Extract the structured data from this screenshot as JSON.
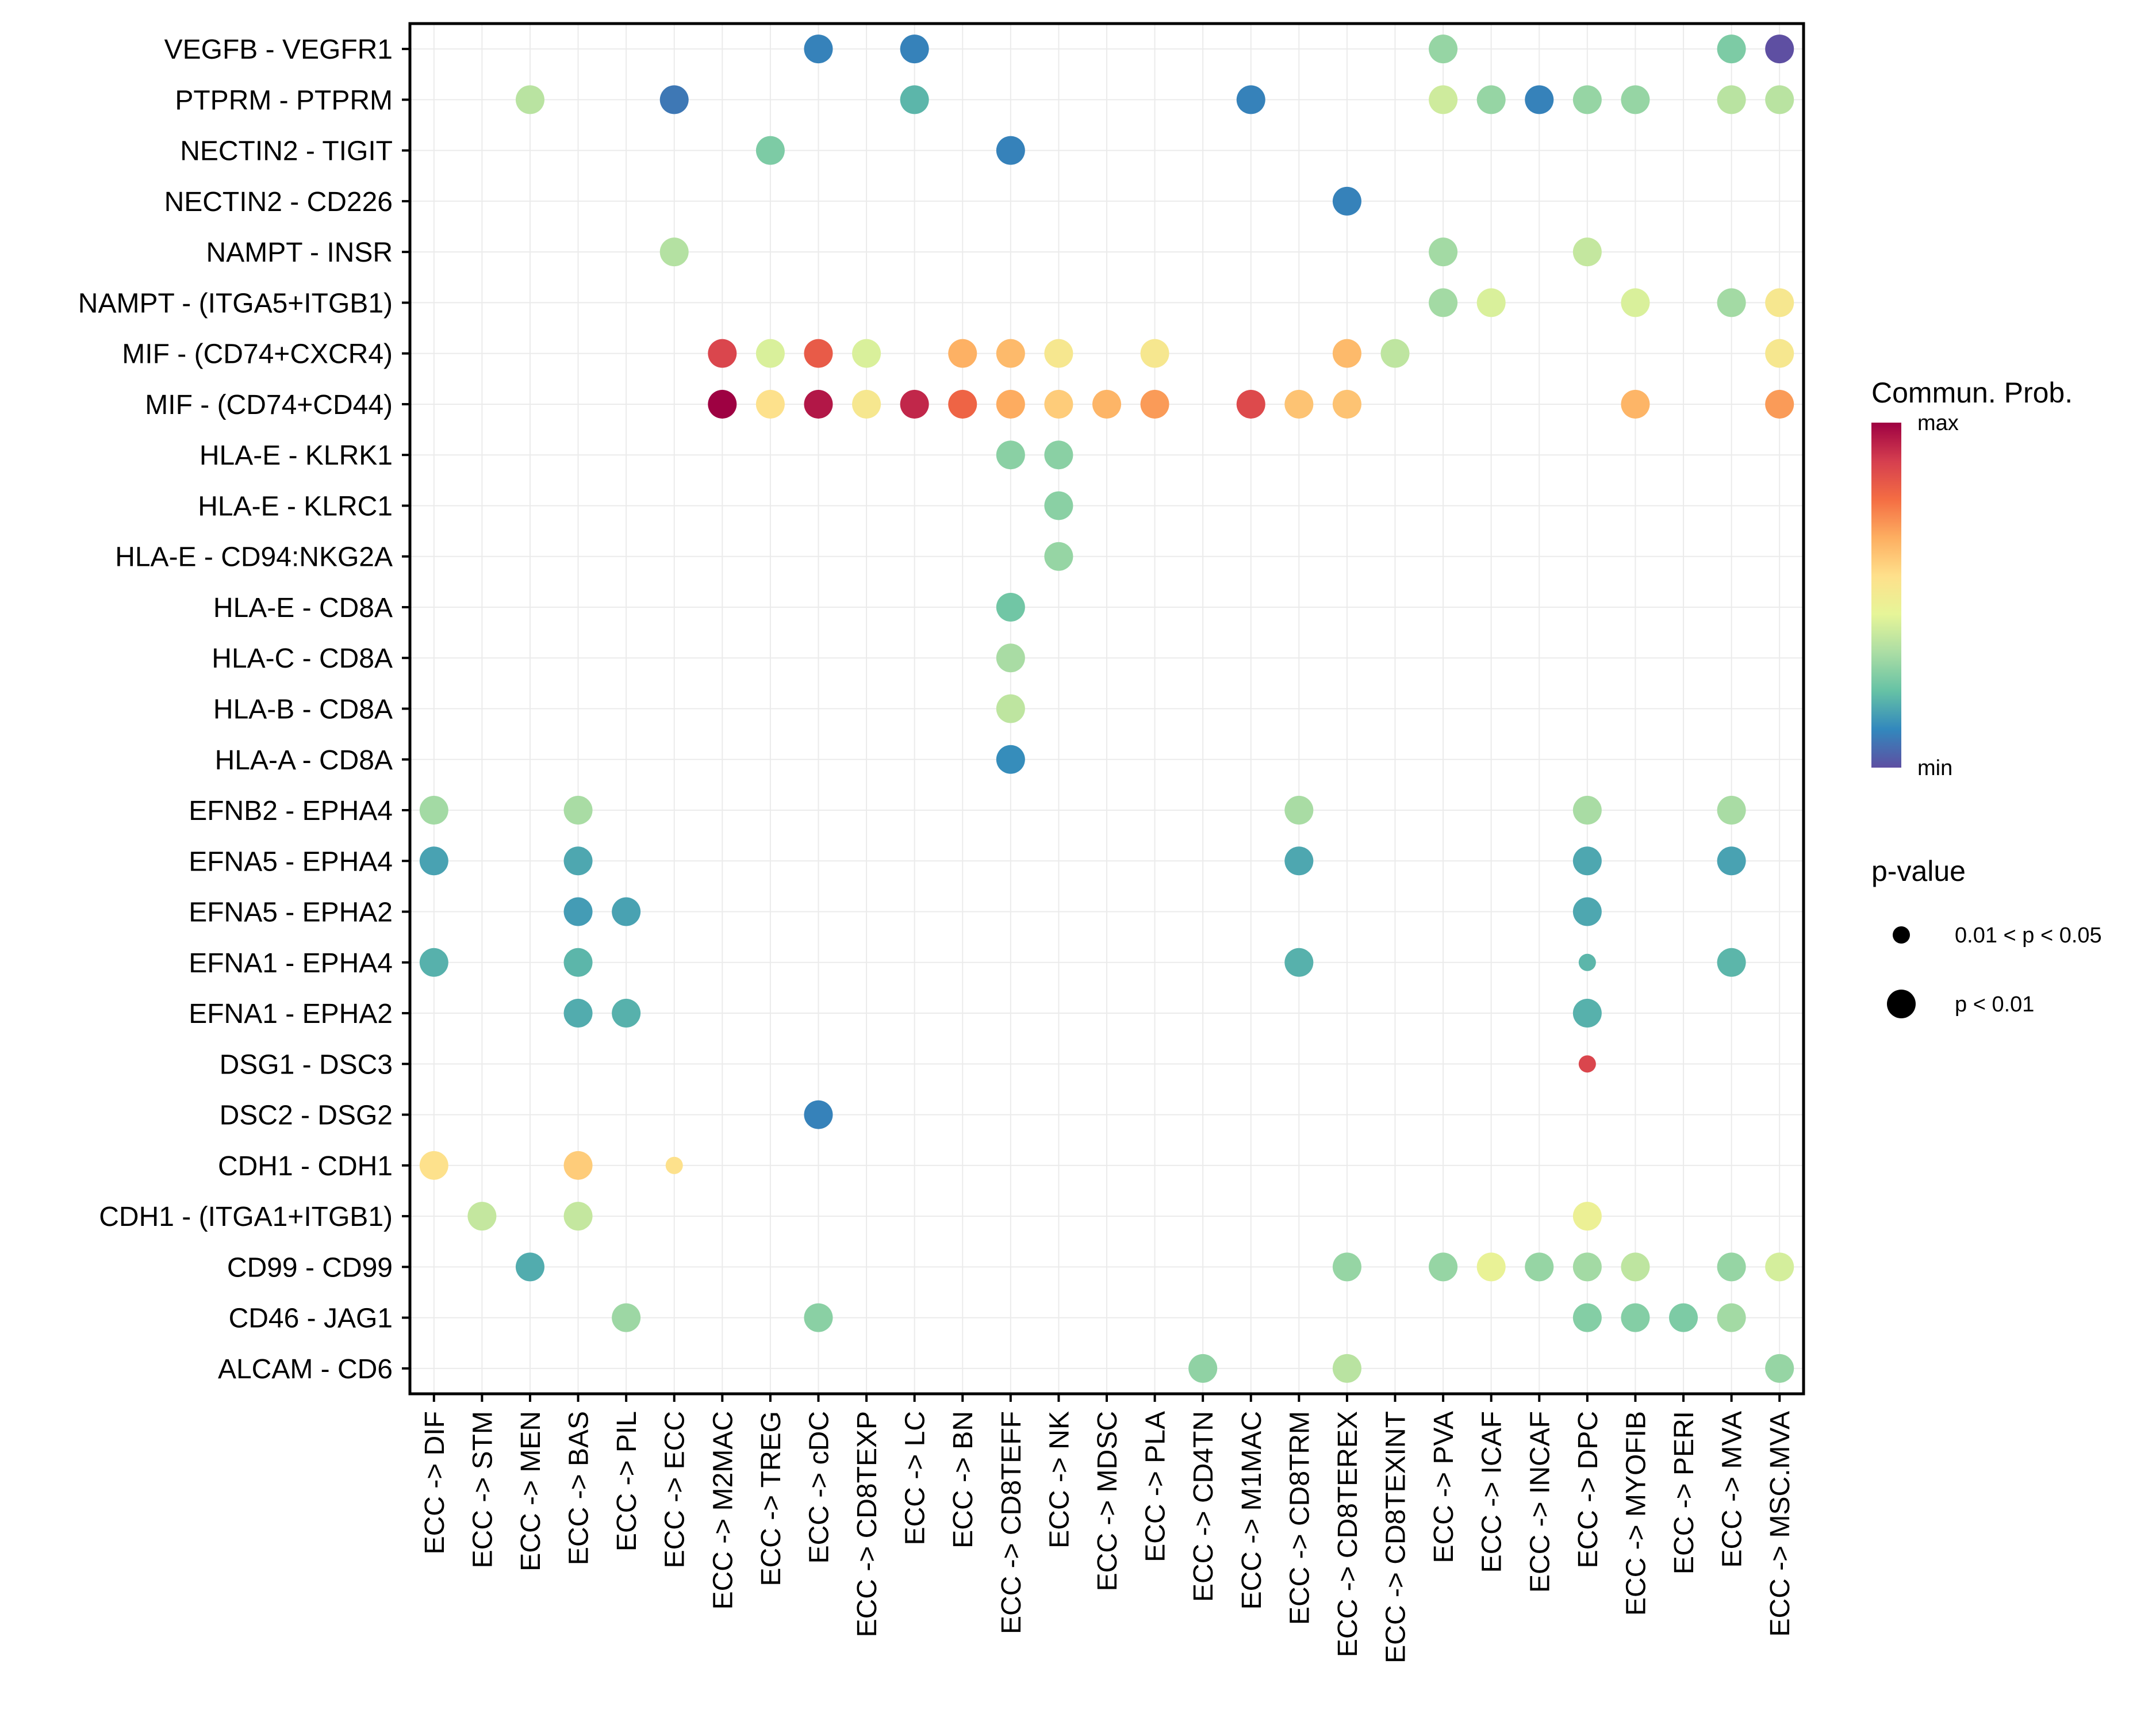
{
  "chart_data": {
    "type": "scatter",
    "subtype": "dot-matrix",
    "title": "",
    "xlabel": "",
    "ylabel": "",
    "grid": true,
    "x_categories": [
      "ECC -> DIF",
      "ECC -> STM",
      "ECC -> MEN",
      "ECC -> BAS",
      "ECC -> PIL",
      "ECC -> ECC",
      "ECC -> M2MAC",
      "ECC -> TREG",
      "ECC -> cDC",
      "ECC -> CD8TEXP",
      "ECC -> LC",
      "ECC -> BN",
      "ECC -> CD8TEFF",
      "ECC -> NK",
      "ECC -> MDSC",
      "ECC -> PLA",
      "ECC -> CD4TN",
      "ECC -> M1MAC",
      "ECC -> CD8TRM",
      "ECC -> CD8TEREX",
      "ECC -> CD8TEXINT",
      "ECC -> PVA",
      "ECC -> ICAF",
      "ECC -> INCAF",
      "ECC -> DPC",
      "ECC -> MYOFIB",
      "ECC -> PERI",
      "ECC -> MVA",
      "ECC -> MSC.MVA"
    ],
    "y_categories": [
      "VEGFB - VEGFR1",
      "PTPRM - PTPRM",
      "NECTIN2 - TIGIT",
      "NECTIN2 - CD226",
      "NAMPT - INSR",
      "NAMPT - (ITGA5+ITGB1)",
      "MIF - (CD74+CXCR4)",
      "MIF - (CD74+CD44)",
      "HLA-E - KLRK1",
      "HLA-E - KLRC1",
      "HLA-E - CD94:NKG2A",
      "HLA-E - CD8A",
      "HLA-C - CD8A",
      "HLA-B - CD8A",
      "HLA-A - CD8A",
      "EFNB2 - EPHA4",
      "EFNA5 - EPHA4",
      "EFNA5 - EPHA2",
      "EFNA1 - EPHA4",
      "EFNA1 - EPHA2",
      "DSG1 - DSC3",
      "DSC2 - DSG2",
      "CDH1 - CDH1",
      "CDH1 - (ITGA1+ITGB1)",
      "CD99 - CD99",
      "CD46 - JAG1",
      "ALCAM - CD6"
    ],
    "color_scale": {
      "name": "Commun. Prob.",
      "min_label": "min",
      "max_label": "max",
      "stops": [
        "#5E4FA2",
        "#3288BD",
        "#66C2A5",
        "#ABDDA4",
        "#E6F598",
        "#FEE08B",
        "#FDAE61",
        "#F46D43",
        "#D53E4F",
        "#9E0142"
      ]
    },
    "size_legend": {
      "title": "p-value",
      "items": [
        {
          "label": "0.01 < p < 0.05",
          "pclass": "mid"
        },
        {
          "label": "p < 0.01",
          "pclass": "low"
        }
      ]
    },
    "points": [
      {
        "y": "VEGFB - VEGFR1",
        "x": "ECC -> cDC",
        "prob": 0.1,
        "p": "low"
      },
      {
        "y": "VEGFB - VEGFR1",
        "x": "ECC -> LC",
        "prob": 0.1,
        "p": "low"
      },
      {
        "y": "VEGFB - VEGFR1",
        "x": "ECC -> PVA",
        "prob": 0.3,
        "p": "low"
      },
      {
        "y": "VEGFB - VEGFR1",
        "x": "ECC -> MVA",
        "prob": 0.26,
        "p": "low"
      },
      {
        "y": "VEGFB - VEGFR1",
        "x": "ECC -> MSC.MVA",
        "prob": 0.0,
        "p": "low"
      },
      {
        "y": "PTPRM - PTPRM",
        "x": "ECC -> MEN",
        "prob": 0.36,
        "p": "low"
      },
      {
        "y": "PTPRM - PTPRM",
        "x": "ECC -> ECC",
        "prob": 0.08,
        "p": "low"
      },
      {
        "y": "PTPRM - PTPRM",
        "x": "ECC -> LC",
        "prob": 0.2,
        "p": "low"
      },
      {
        "y": "PTPRM - PTPRM",
        "x": "ECC -> M1MAC",
        "prob": 0.1,
        "p": "low"
      },
      {
        "y": "PTPRM - PTPRM",
        "x": "ECC -> PVA",
        "prob": 0.4,
        "p": "low"
      },
      {
        "y": "PTPRM - PTPRM",
        "x": "ECC -> ICAF",
        "prob": 0.3,
        "p": "low"
      },
      {
        "y": "PTPRM - PTPRM",
        "x": "ECC -> INCAF",
        "prob": 0.1,
        "p": "low"
      },
      {
        "y": "PTPRM - PTPRM",
        "x": "ECC -> DPC",
        "prob": 0.3,
        "p": "low"
      },
      {
        "y": "PTPRM - PTPRM",
        "x": "ECC -> MYOFIB",
        "prob": 0.3,
        "p": "low"
      },
      {
        "y": "PTPRM - PTPRM",
        "x": "ECC -> MVA",
        "prob": 0.36,
        "p": "low"
      },
      {
        "y": "PTPRM - PTPRM",
        "x": "ECC -> MSC.MVA",
        "prob": 0.36,
        "p": "low"
      },
      {
        "y": "NECTIN2 - TIGIT",
        "x": "ECC -> TREG",
        "prob": 0.26,
        "p": "low"
      },
      {
        "y": "NECTIN2 - TIGIT",
        "x": "ECC -> CD8TEFF",
        "prob": 0.1,
        "p": "low"
      },
      {
        "y": "NECTIN2 - CD226",
        "x": "ECC -> CD8TEREX",
        "prob": 0.1,
        "p": "low"
      },
      {
        "y": "NAMPT - INSR",
        "x": "ECC -> ECC",
        "prob": 0.35,
        "p": "low"
      },
      {
        "y": "NAMPT - INSR",
        "x": "ECC -> PVA",
        "prob": 0.32,
        "p": "low"
      },
      {
        "y": "NAMPT - INSR",
        "x": "ECC -> DPC",
        "prob": 0.38,
        "p": "low"
      },
      {
        "y": "NAMPT - (ITGA5+ITGB1)",
        "x": "ECC -> PVA",
        "prob": 0.32,
        "p": "low"
      },
      {
        "y": "NAMPT - (ITGA5+ITGB1)",
        "x": "ECC -> ICAF",
        "prob": 0.42,
        "p": "low"
      },
      {
        "y": "NAMPT - (ITGA5+ITGB1)",
        "x": "ECC -> MYOFIB",
        "prob": 0.42,
        "p": "low"
      },
      {
        "y": "NAMPT - (ITGA5+ITGB1)",
        "x": "ECC -> MVA",
        "prob": 0.32,
        "p": "low"
      },
      {
        "y": "NAMPT - (ITGA5+ITGB1)",
        "x": "ECC -> MSC.MVA",
        "prob": 0.52,
        "p": "low"
      },
      {
        "y": "MIF - (CD74+CXCR4)",
        "x": "ECC -> M2MAC",
        "prob": 0.87,
        "p": "low"
      },
      {
        "y": "MIF - (CD74+CXCR4)",
        "x": "ECC -> TREG",
        "prob": 0.42,
        "p": "low"
      },
      {
        "y": "MIF - (CD74+CXCR4)",
        "x": "ECC -> cDC",
        "prob": 0.82,
        "p": "low"
      },
      {
        "y": "MIF - (CD74+CXCR4)",
        "x": "ECC -> CD8TEXP",
        "prob": 0.42,
        "p": "low"
      },
      {
        "y": "MIF - (CD74+CXCR4)",
        "x": "ECC -> BN",
        "prob": 0.66,
        "p": "low"
      },
      {
        "y": "MIF - (CD74+CXCR4)",
        "x": "ECC -> CD8TEFF",
        "prob": 0.64,
        "p": "low"
      },
      {
        "y": "MIF - (CD74+CXCR4)",
        "x": "ECC -> NK",
        "prob": 0.52,
        "p": "low"
      },
      {
        "y": "MIF - (CD74+CXCR4)",
        "x": "ECC -> PLA",
        "prob": 0.52,
        "p": "low"
      },
      {
        "y": "MIF - (CD74+CXCR4)",
        "x": "ECC -> CD8TEREX",
        "prob": 0.64,
        "p": "low"
      },
      {
        "y": "MIF - (CD74+CXCR4)",
        "x": "ECC -> CD8TEXINT",
        "prob": 0.37,
        "p": "low"
      },
      {
        "y": "MIF - (CD74+CXCR4)",
        "x": "ECC -> MSC.MVA",
        "prob": 0.52,
        "p": "low"
      },
      {
        "y": "MIF - (CD74+CD44)",
        "x": "ECC -> M2MAC",
        "prob": 1.0,
        "p": "low"
      },
      {
        "y": "MIF - (CD74+CD44)",
        "x": "ECC -> TREG",
        "prob": 0.55,
        "p": "low"
      },
      {
        "y": "MIF - (CD74+CD44)",
        "x": "ECC -> cDC",
        "prob": 0.96,
        "p": "low"
      },
      {
        "y": "MIF - (CD74+CD44)",
        "x": "ECC -> CD8TEXP",
        "prob": 0.52,
        "p": "low"
      },
      {
        "y": "MIF - (CD74+CD44)",
        "x": "ECC -> LC",
        "prob": 0.93,
        "p": "low"
      },
      {
        "y": "MIF - (CD74+CD44)",
        "x": "ECC -> BN",
        "prob": 0.8,
        "p": "low"
      },
      {
        "y": "MIF - (CD74+CD44)",
        "x": "ECC -> CD8TEFF",
        "prob": 0.67,
        "p": "low"
      },
      {
        "y": "MIF - (CD74+CD44)",
        "x": "ECC -> NK",
        "prob": 0.6,
        "p": "low"
      },
      {
        "y": "MIF - (CD74+CD44)",
        "x": "ECC -> MDSC",
        "prob": 0.65,
        "p": "low"
      },
      {
        "y": "MIF - (CD74+CD44)",
        "x": "ECC -> PLA",
        "prob": 0.7,
        "p": "low"
      },
      {
        "y": "MIF - (CD74+CD44)",
        "x": "ECC -> M1MAC",
        "prob": 0.86,
        "p": "low"
      },
      {
        "y": "MIF - (CD74+CD44)",
        "x": "ECC -> CD8TRM",
        "prob": 0.62,
        "p": "low"
      },
      {
        "y": "MIF - (CD74+CD44)",
        "x": "ECC -> CD8TEREX",
        "prob": 0.62,
        "p": "low"
      },
      {
        "y": "MIF - (CD74+CD44)",
        "x": "ECC -> MYOFIB",
        "prob": 0.65,
        "p": "low"
      },
      {
        "y": "MIF - (CD74+CD44)",
        "x": "ECC -> MSC.MVA",
        "prob": 0.7,
        "p": "low"
      },
      {
        "y": "HLA-E - KLRK1",
        "x": "ECC -> CD8TEFF",
        "prob": 0.28,
        "p": "low"
      },
      {
        "y": "HLA-E - KLRK1",
        "x": "ECC -> NK",
        "prob": 0.28,
        "p": "low"
      },
      {
        "y": "HLA-E - KLRC1",
        "x": "ECC -> NK",
        "prob": 0.28,
        "p": "low"
      },
      {
        "y": "HLA-E - CD94:NKG2A",
        "x": "ECC -> NK",
        "prob": 0.3,
        "p": "low"
      },
      {
        "y": "HLA-E - CD8A",
        "x": "ECC -> CD8TEFF",
        "prob": 0.24,
        "p": "low"
      },
      {
        "y": "HLA-C - CD8A",
        "x": "ECC -> CD8TEFF",
        "prob": 0.33,
        "p": "low"
      },
      {
        "y": "HLA-B - CD8A",
        "x": "ECC -> CD8TEFF",
        "prob": 0.37,
        "p": "low"
      },
      {
        "y": "HLA-A - CD8A",
        "x": "ECC -> CD8TEFF",
        "prob": 0.12,
        "p": "low"
      },
      {
        "y": "EFNB2 - EPHA4",
        "x": "ECC -> DIF",
        "prob": 0.32,
        "p": "low"
      },
      {
        "y": "EFNB2 - EPHA4",
        "x": "ECC -> BAS",
        "prob": 0.33,
        "p": "low"
      },
      {
        "y": "EFNB2 - EPHA4",
        "x": "ECC -> CD8TRM",
        "prob": 0.33,
        "p": "low"
      },
      {
        "y": "EFNB2 - EPHA4",
        "x": "ECC -> DPC",
        "prob": 0.33,
        "p": "low"
      },
      {
        "y": "EFNB2 - EPHA4",
        "x": "ECC -> MVA",
        "prob": 0.33,
        "p": "low"
      },
      {
        "y": "EFNA5 - EPHA4",
        "x": "ECC -> DIF",
        "prob": 0.16,
        "p": "low"
      },
      {
        "y": "EFNA5 - EPHA4",
        "x": "ECC -> BAS",
        "prob": 0.17,
        "p": "low"
      },
      {
        "y": "EFNA5 - EPHA4",
        "x": "ECC -> CD8TRM",
        "prob": 0.17,
        "p": "low"
      },
      {
        "y": "EFNA5 - EPHA4",
        "x": "ECC -> DPC",
        "prob": 0.17,
        "p": "low"
      },
      {
        "y": "EFNA5 - EPHA4",
        "x": "ECC -> MVA",
        "prob": 0.16,
        "p": "low"
      },
      {
        "y": "EFNA5 - EPHA2",
        "x": "ECC -> BAS",
        "prob": 0.15,
        "p": "low"
      },
      {
        "y": "EFNA5 - EPHA2",
        "x": "ECC -> PIL",
        "prob": 0.16,
        "p": "low"
      },
      {
        "y": "EFNA5 - EPHA2",
        "x": "ECC -> DPC",
        "prob": 0.17,
        "p": "low"
      },
      {
        "y": "EFNA1 - EPHA4",
        "x": "ECC -> DIF",
        "prob": 0.19,
        "p": "low"
      },
      {
        "y": "EFNA1 - EPHA4",
        "x": "ECC -> BAS",
        "prob": 0.2,
        "p": "low"
      },
      {
        "y": "EFNA1 - EPHA4",
        "x": "ECC -> CD8TRM",
        "prob": 0.19,
        "p": "low"
      },
      {
        "y": "EFNA1 - EPHA4",
        "x": "ECC -> DPC",
        "prob": 0.2,
        "p": "mid"
      },
      {
        "y": "EFNA1 - EPHA4",
        "x": "ECC -> MVA",
        "prob": 0.2,
        "p": "low"
      },
      {
        "y": "EFNA1 - EPHA2",
        "x": "ECC -> BAS",
        "prob": 0.18,
        "p": "low"
      },
      {
        "y": "EFNA1 - EPHA2",
        "x": "ECC -> PIL",
        "prob": 0.19,
        "p": "low"
      },
      {
        "y": "EFNA1 - EPHA2",
        "x": "ECC -> DPC",
        "prob": 0.19,
        "p": "low"
      },
      {
        "y": "DSG1 - DSC3",
        "x": "ECC -> DPC",
        "prob": 0.87,
        "p": "mid"
      },
      {
        "y": "DSC2 - DSG2",
        "x": "ECC -> cDC",
        "prob": 0.1,
        "p": "low"
      },
      {
        "y": "CDH1 - CDH1",
        "x": "ECC -> DIF",
        "prob": 0.55,
        "p": "low"
      },
      {
        "y": "CDH1 - CDH1",
        "x": "ECC -> BAS",
        "prob": 0.6,
        "p": "low"
      },
      {
        "y": "CDH1 - CDH1",
        "x": "ECC -> ECC",
        "prob": 0.55,
        "p": "mid"
      },
      {
        "y": "CDH1 - (ITGA1+ITGB1)",
        "x": "ECC -> STM",
        "prob": 0.38,
        "p": "low"
      },
      {
        "y": "CDH1 - (ITGA1+ITGB1)",
        "x": "ECC -> BAS",
        "prob": 0.38,
        "p": "low"
      },
      {
        "y": "CDH1 - (ITGA1+ITGB1)",
        "x": "ECC -> DPC",
        "prob": 0.47,
        "p": "low"
      },
      {
        "y": "CD99 - CD99",
        "x": "ECC -> MEN",
        "prob": 0.18,
        "p": "low"
      },
      {
        "y": "CD99 - CD99",
        "x": "ECC -> CD8TEREX",
        "prob": 0.3,
        "p": "low"
      },
      {
        "y": "CD99 - CD99",
        "x": "ECC -> PVA",
        "prob": 0.3,
        "p": "low"
      },
      {
        "y": "CD99 - CD99",
        "x": "ECC -> ICAF",
        "prob": 0.46,
        "p": "low"
      },
      {
        "y": "CD99 - CD99",
        "x": "ECC -> INCAF",
        "prob": 0.3,
        "p": "low"
      },
      {
        "y": "CD99 - CD99",
        "x": "ECC -> DPC",
        "prob": 0.32,
        "p": "low"
      },
      {
        "y": "CD99 - CD99",
        "x": "ECC -> MYOFIB",
        "prob": 0.37,
        "p": "low"
      },
      {
        "y": "CD99 - CD99",
        "x": "ECC -> MVA",
        "prob": 0.3,
        "p": "low"
      },
      {
        "y": "CD99 - CD99",
        "x": "ECC -> MSC.MVA",
        "prob": 0.41,
        "p": "low"
      },
      {
        "y": "CD46 - JAG1",
        "x": "ECC -> PIL",
        "prob": 0.31,
        "p": "low"
      },
      {
        "y": "CD46 - JAG1",
        "x": "ECC -> cDC",
        "prob": 0.28,
        "p": "low"
      },
      {
        "y": "CD46 - JAG1",
        "x": "ECC -> DPC",
        "prob": 0.27,
        "p": "low"
      },
      {
        "y": "CD46 - JAG1",
        "x": "ECC -> MYOFIB",
        "prob": 0.27,
        "p": "low"
      },
      {
        "y": "CD46 - JAG1",
        "x": "ECC -> PERI",
        "prob": 0.26,
        "p": "low"
      },
      {
        "y": "CD46 - JAG1",
        "x": "ECC -> MVA",
        "prob": 0.32,
        "p": "low"
      },
      {
        "y": "ALCAM - CD6",
        "x": "ECC -> CD4TN",
        "prob": 0.29,
        "p": "low"
      },
      {
        "y": "ALCAM - CD6",
        "x": "ECC -> CD8TEREX",
        "prob": 0.36,
        "p": "low"
      },
      {
        "y": "ALCAM - CD6",
        "x": "ECC -> MSC.MVA",
        "prob": 0.3,
        "p": "low"
      }
    ]
  }
}
